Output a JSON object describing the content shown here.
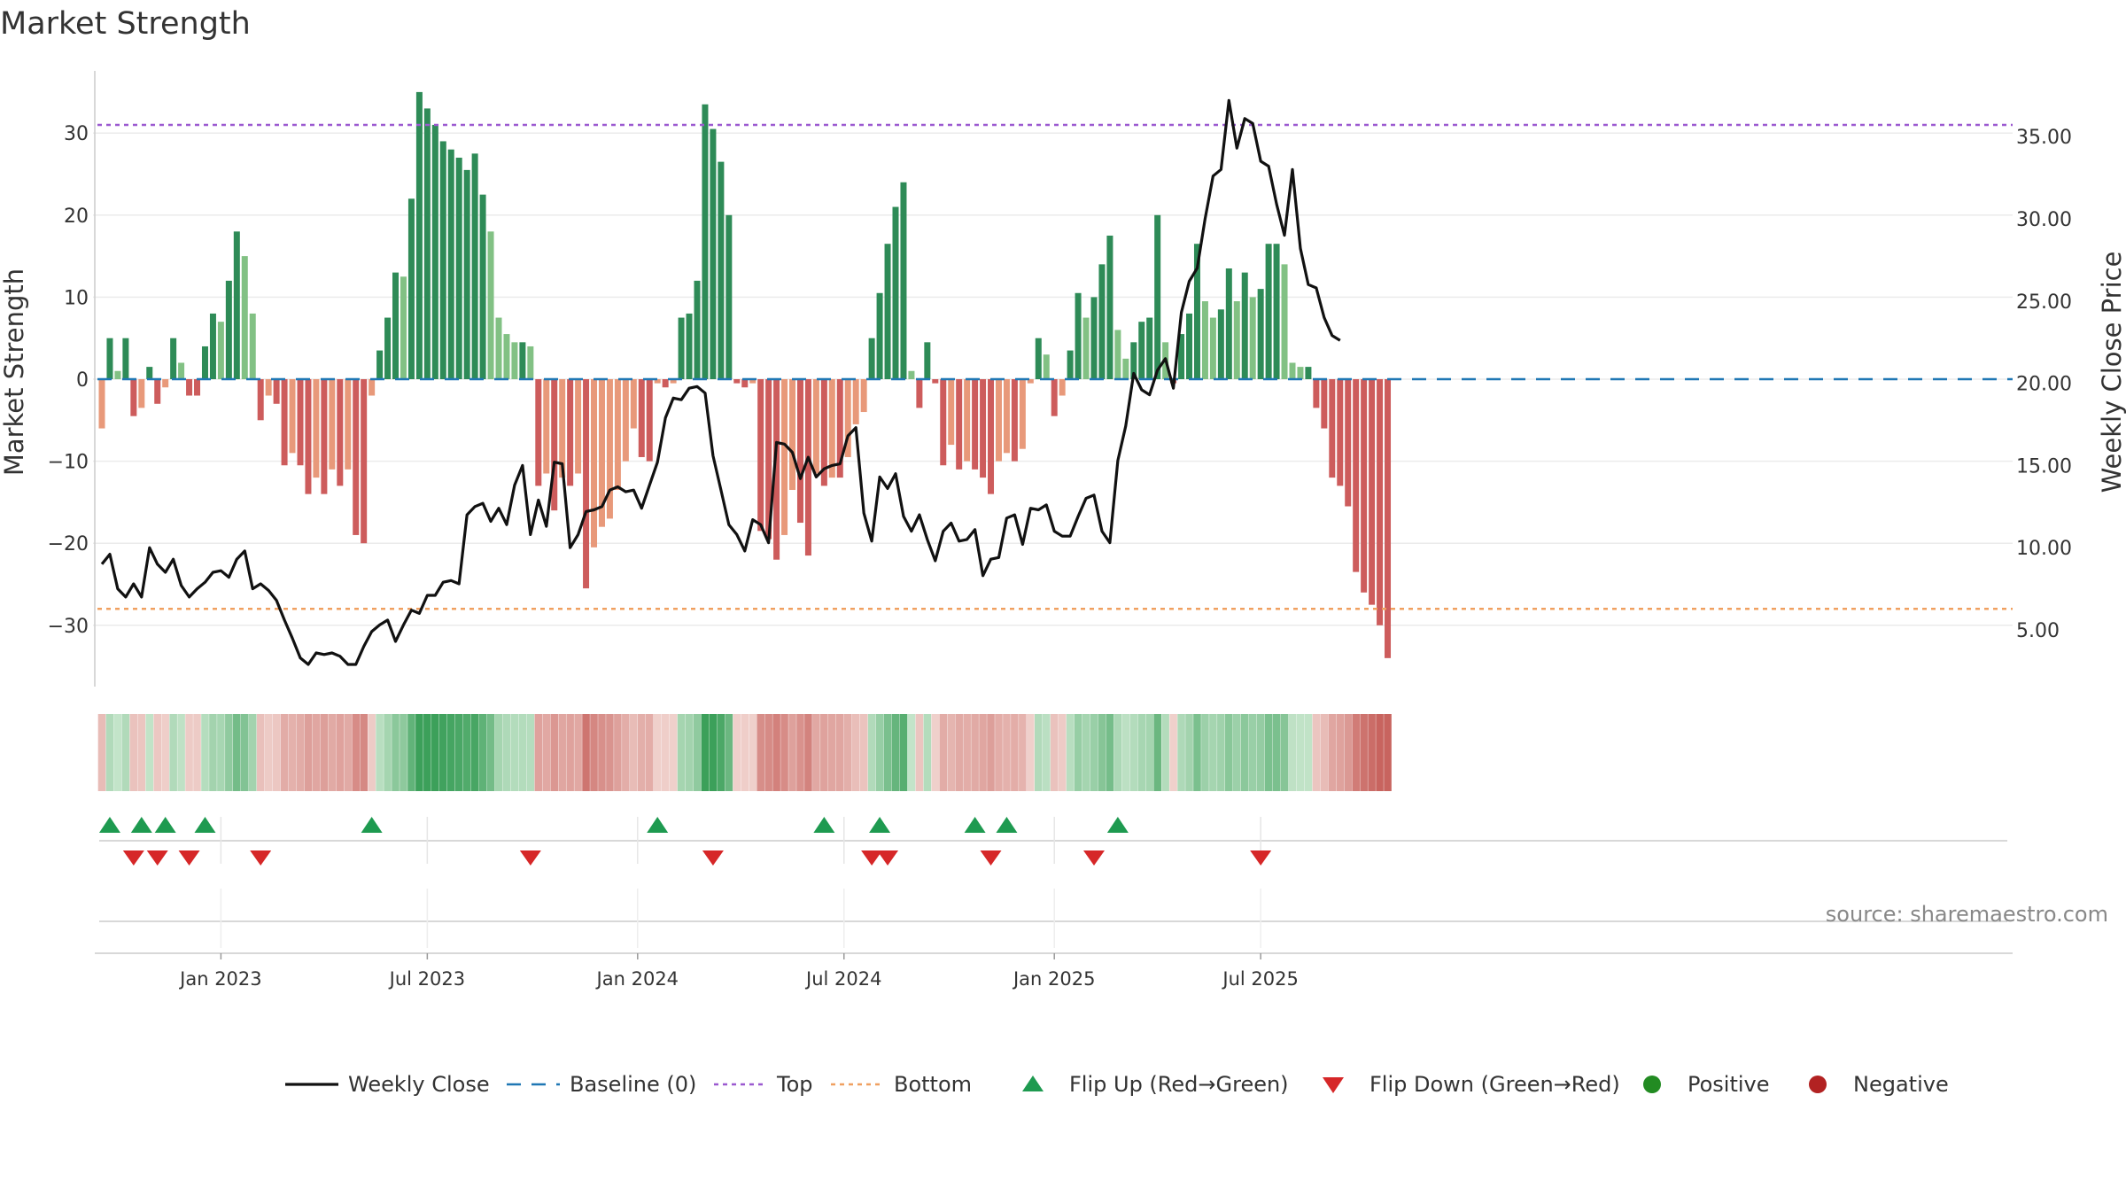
{
  "chart_data": {
    "type": "bar+line",
    "title": "Market Strength",
    "ylabel_left": "Market Strength",
    "ylabel_right": "Weekly Close Price",
    "ylim_left": [
      -38,
      38
    ],
    "ylim_right": [
      2.4,
      38.4
    ],
    "yticks_left": [
      30,
      20,
      10,
      0,
      -10,
      -20,
      -30
    ],
    "ytick_labels_left": [
      "30",
      "20",
      "10",
      "0",
      "−10",
      "−20",
      "−30"
    ],
    "yticks_right": [
      35,
      30,
      25,
      20,
      15,
      10,
      5
    ],
    "ytick_labels_right": [
      "35.00",
      "30.00",
      "25.00",
      "20.00",
      "15.00",
      "10.00",
      "5.00"
    ],
    "top_level": 31,
    "bottom_level": -28,
    "x_month_ticks": [
      {
        "label": "Jan 2023",
        "week": 15.0
      },
      {
        "label": "Jul 2023",
        "week": 41.0
      },
      {
        "label": "Jan 2024",
        "week": 67.5
      },
      {
        "label": "Jul 2024",
        "week": 93.5
      },
      {
        "label": "Jan 2025",
        "week": 120.0
      },
      {
        "label": "Jul 2025",
        "week": 146.0
      }
    ],
    "strength": [
      -6,
      5,
      1,
      5,
      -4.5,
      -3.5,
      1.5,
      -3,
      -1,
      5,
      2,
      -2,
      -2,
      4,
      8,
      7,
      12,
      18,
      15,
      8,
      -5,
      -2,
      -3,
      -10.5,
      -9,
      -10.5,
      -14,
      -12,
      -14,
      -11,
      -13,
      -11,
      -19,
      -20,
      -2,
      3.5,
      7.5,
      13,
      12.5,
      22,
      35,
      33,
      31,
      29,
      28,
      27,
      25.5,
      27.5,
      22.5,
      18,
      7.5,
      5.5,
      4.5,
      4.5,
      4,
      -13,
      -11.5,
      -16,
      -12,
      -13,
      -11.5,
      -25.5,
      -20.5,
      -18,
      -17,
      -13.5,
      -10,
      -6,
      -9.5,
      -10,
      -0.5,
      -1,
      -0.5,
      7.5,
      8,
      12,
      33.5,
      30.5,
      26.5,
      20,
      -0.5,
      -1,
      -0.5,
      -18.5,
      -19.5,
      -22,
      -19,
      -13.5,
      -17.5,
      -21.5,
      -11.5,
      -13,
      -12,
      -12,
      -9.5,
      -5.5,
      -4,
      5,
      10.5,
      16.5,
      21,
      24,
      1,
      -3.5,
      4.5,
      -0.5,
      -10.5,
      -8,
      -11,
      -10,
      -11,
      -12,
      -14,
      -10,
      -9,
      -10,
      -8.5,
      -0.5,
      5,
      3,
      -4.5,
      -2,
      3.5,
      10.5,
      7.5,
      10,
      14,
      17.5,
      6,
      2.5,
      4.5,
      7,
      7.5,
      20,
      4.5,
      -0.5,
      5.5,
      8,
      16.5,
      9.5,
      7.5,
      8.5,
      13.5,
      9.5,
      13,
      10,
      11,
      16.5,
      16.5,
      14,
      2,
      1.5,
      1.5,
      -3.5,
      -6,
      -12,
      -13,
      -15.5,
      -23.5,
      -26,
      -27.5,
      -30,
      -34
    ],
    "weekly_close": [
      9,
      9.6,
      7.5,
      7,
      7.8,
      7,
      10,
      9,
      8.5,
      9.3,
      7.7,
      7,
      7.5,
      7.9,
      8.5,
      8.6,
      8.2,
      9.3,
      9.8,
      7.5,
      7.8,
      7.4,
      6.8,
      5.6,
      4.5,
      3.3,
      2.9,
      3.6,
      3.5,
      3.6,
      3.4,
      2.9,
      2.9,
      4,
      4.9,
      5.3,
      5.6,
      4.3,
      5.3,
      6.2,
      6,
      7.1,
      7.1,
      7.9,
      8,
      7.8,
      12,
      12.5,
      12.7,
      11.6,
      12.4,
      11.4,
      13.8,
      15,
      10.8,
      12.9,
      11.3,
      15.2,
      15.1,
      10,
      10.8,
      12.2,
      12.3,
      12.5,
      13.5,
      13.7,
      13.4,
      13.5,
      12.4,
      13.8,
      15.2,
      17.9,
      19.1,
      19,
      19.7,
      19.8,
      19.4,
      15.6,
      13.5,
      11.4,
      10.8,
      9.8,
      11.7,
      11.4,
      10.3,
      16.4,
      16.3,
      15.8,
      14.2,
      15.5,
      14.3,
      14.8,
      15,
      15.1,
      16.8,
      17.3,
      12.1,
      10.4,
      14.3,
      13.6,
      14.5,
      11.9,
      11,
      12,
      10.5,
      9.2,
      11,
      11.5,
      10.4,
      10.5,
      11.1,
      8.3,
      9.3,
      9.4,
      11.8,
      12,
      10.2,
      12.4,
      12.3,
      12.6,
      11,
      10.7,
      10.7,
      11.9,
      13,
      13.2,
      11,
      10.3,
      15.3,
      17.4,
      20.6,
      19.6,
      19.3,
      20.8,
      21.5,
      19.7,
      24.3,
      26.2,
      27,
      30,
      32.6,
      33,
      37.2,
      34.3,
      36.1,
      35.8,
      33.5,
      33.2,
      30.9,
      29,
      33,
      28.2,
      26,
      25.8,
      24,
      22.9,
      22.6
    ],
    "flip_up": [
      1,
      5,
      8,
      13,
      34,
      70,
      91,
      98,
      110,
      114,
      128
    ],
    "flip_down": [
      4,
      7,
      11,
      20,
      54,
      77,
      97,
      99,
      112,
      125,
      146
    ],
    "legend": [
      "Weekly Close",
      "Baseline (0)",
      "Top",
      "Bottom",
      "Flip Up (Red→Green)",
      "Flip Down (Green→Red)",
      "Positive",
      "Negative"
    ],
    "source_label": "source: sharemaestro.com"
  },
  "colors": {
    "strong_pos": "#2e8b57",
    "weak_pos": "#82c184",
    "weak_neg": "#e8997a",
    "strong_neg": "#cd5c5c",
    "close_line": "#111111",
    "baseline": "#1f77b4",
    "top_line": "#9b59d0",
    "bottom_line": "#f0a060",
    "flip_up": "#1e9a50",
    "flip_down": "#d62728",
    "positive_dot": "#228b22",
    "negative_dot": "#b22222"
  }
}
